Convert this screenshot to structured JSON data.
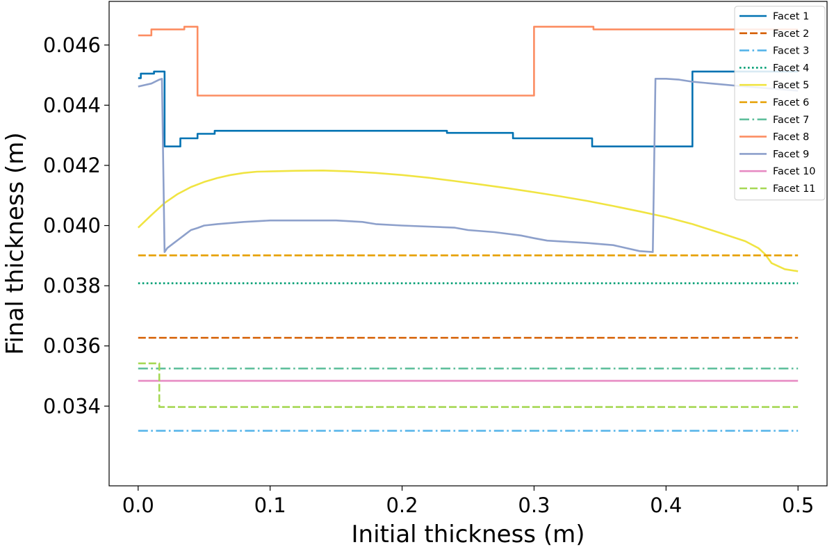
{
  "chart_data": {
    "type": "line",
    "xlabel": "Initial thickness (m)",
    "ylabel": "Final thickness (m)",
    "xlim": [
      -0.022,
      0.522
    ],
    "ylim": [
      0.03135,
      0.04745
    ],
    "x_ticks": [
      "0.0",
      "0.1",
      "0.2",
      "0.3",
      "0.4",
      "0.5"
    ],
    "x_tick_values": [
      0.0,
      0.1,
      0.2,
      0.3,
      0.4,
      0.5
    ],
    "y_ticks": [
      "0.034",
      "0.036",
      "0.038",
      "0.040",
      "0.042",
      "0.044",
      "0.046"
    ],
    "y_tick_values": [
      0.034,
      0.036,
      0.038,
      0.04,
      0.042,
      0.044,
      0.046
    ],
    "grid": false,
    "legend_position": "top-right",
    "series": [
      {
        "name": "Facet 1",
        "color": "#0072B2",
        "dash": "solid",
        "step": true,
        "x": [
          0.0,
          0.002,
          0.005,
          0.012,
          0.019,
          0.02,
          0.032,
          0.045,
          0.058,
          0.1,
          0.15,
          0.2,
          0.234,
          0.25,
          0.28,
          0.284,
          0.3,
          0.32,
          0.34,
          0.344,
          0.38,
          0.416,
          0.42,
          0.45,
          0.5
        ],
        "y": [
          0.0449,
          0.04505,
          0.04505,
          0.04512,
          0.04512,
          0.04263,
          0.0429,
          0.04305,
          0.04315,
          0.04315,
          0.04315,
          0.04315,
          0.04308,
          0.04308,
          0.04308,
          0.0429,
          0.0429,
          0.0429,
          0.0429,
          0.04263,
          0.04263,
          0.04263,
          0.04512,
          0.04512,
          0.04512
        ]
      },
      {
        "name": "Facet 2",
        "color": "#D55E00",
        "dash": "dashed",
        "step": false,
        "x": [
          0.0,
          0.5
        ],
        "y": [
          0.03627,
          0.03627
        ]
      },
      {
        "name": "Facet 3",
        "color": "#56B4E9",
        "dash": "dashdot",
        "step": false,
        "x": [
          0.0,
          0.5
        ],
        "y": [
          0.03318,
          0.03318
        ]
      },
      {
        "name": "Facet 4",
        "color": "#009E73",
        "dash": "dotted",
        "step": false,
        "x": [
          0.0,
          0.5
        ],
        "y": [
          0.03808,
          0.03808
        ]
      },
      {
        "name": "Facet 5",
        "color": "#F0E442",
        "dash": "solid",
        "step": false,
        "x": [
          0.0,
          0.01,
          0.02,
          0.03,
          0.04,
          0.05,
          0.06,
          0.07,
          0.08,
          0.09,
          0.1,
          0.12,
          0.14,
          0.16,
          0.18,
          0.2,
          0.22,
          0.24,
          0.26,
          0.28,
          0.3,
          0.32,
          0.34,
          0.36,
          0.38,
          0.4,
          0.42,
          0.44,
          0.46,
          0.47,
          0.475,
          0.48,
          0.49,
          0.5
        ],
        "y": [
          0.03993,
          0.04035,
          0.04075,
          0.04105,
          0.04128,
          0.04145,
          0.04158,
          0.04168,
          0.04175,
          0.04179,
          0.0418,
          0.04182,
          0.04183,
          0.0418,
          0.04175,
          0.04168,
          0.04159,
          0.04148,
          0.04136,
          0.04124,
          0.04111,
          0.04097,
          0.04082,
          0.04065,
          0.04047,
          0.04028,
          0.04005,
          0.03977,
          0.03948,
          0.03925,
          0.03905,
          0.03875,
          0.03855,
          0.03848
        ]
      },
      {
        "name": "Facet 6",
        "color": "#E69F00",
        "dash": "dashed",
        "step": false,
        "x": [
          0.0,
          0.5
        ],
        "y": [
          0.03901,
          0.03901
        ]
      },
      {
        "name": "Facet 7",
        "color": "#5FBF9C",
        "dash": "dashdot",
        "step": false,
        "x": [
          0.0,
          0.5
        ],
        "y": [
          0.03525,
          0.03525
        ]
      },
      {
        "name": "Facet 8",
        "color": "#FC8D62",
        "dash": "solid",
        "step": true,
        "x": [
          0.0,
          0.01,
          0.02,
          0.035,
          0.045,
          0.1,
          0.2,
          0.295,
          0.3,
          0.345,
          0.4,
          0.5
        ],
        "y": [
          0.04632,
          0.04652,
          0.04652,
          0.04661,
          0.04432,
          0.04432,
          0.04432,
          0.04432,
          0.04661,
          0.04652,
          0.04652,
          0.04652
        ]
      },
      {
        "name": "Facet 9",
        "color": "#8DA0CB",
        "dash": "solid",
        "step": false,
        "x": [
          0.0,
          0.01,
          0.016,
          0.018,
          0.02,
          0.022,
          0.025,
          0.028,
          0.031,
          0.034,
          0.037,
          0.04,
          0.045,
          0.05,
          0.06,
          0.08,
          0.1,
          0.15,
          0.17,
          0.18,
          0.2,
          0.24,
          0.25,
          0.27,
          0.29,
          0.3,
          0.31,
          0.34,
          0.36,
          0.37,
          0.38,
          0.39,
          0.392,
          0.4,
          0.41,
          0.42,
          0.44,
          0.46,
          0.48,
          0.5
        ],
        "y": [
          0.04462,
          0.04472,
          0.04485,
          0.04488,
          0.03912,
          0.03925,
          0.03935,
          0.03945,
          0.03955,
          0.03965,
          0.03975,
          0.03985,
          0.03992,
          0.04,
          0.04005,
          0.04012,
          0.04017,
          0.04017,
          0.04012,
          0.04005,
          0.04,
          0.03993,
          0.03985,
          0.03978,
          0.03967,
          0.03958,
          0.0395,
          0.03942,
          0.03935,
          0.03925,
          0.03915,
          0.03912,
          0.04488,
          0.04488,
          0.04485,
          0.04478,
          0.0447,
          0.04462,
          0.04455,
          0.04448
        ]
      },
      {
        "name": "Facet 10",
        "color": "#E78AC3",
        "dash": "solid",
        "step": false,
        "x": [
          0.0,
          0.5
        ],
        "y": [
          0.03484,
          0.03484
        ]
      },
      {
        "name": "Facet 11",
        "color": "#A6D854",
        "dash": "dashed",
        "step": true,
        "x": [
          0.0,
          0.016,
          0.5
        ],
        "y": [
          0.03542,
          0.03397,
          0.03397
        ]
      }
    ]
  }
}
